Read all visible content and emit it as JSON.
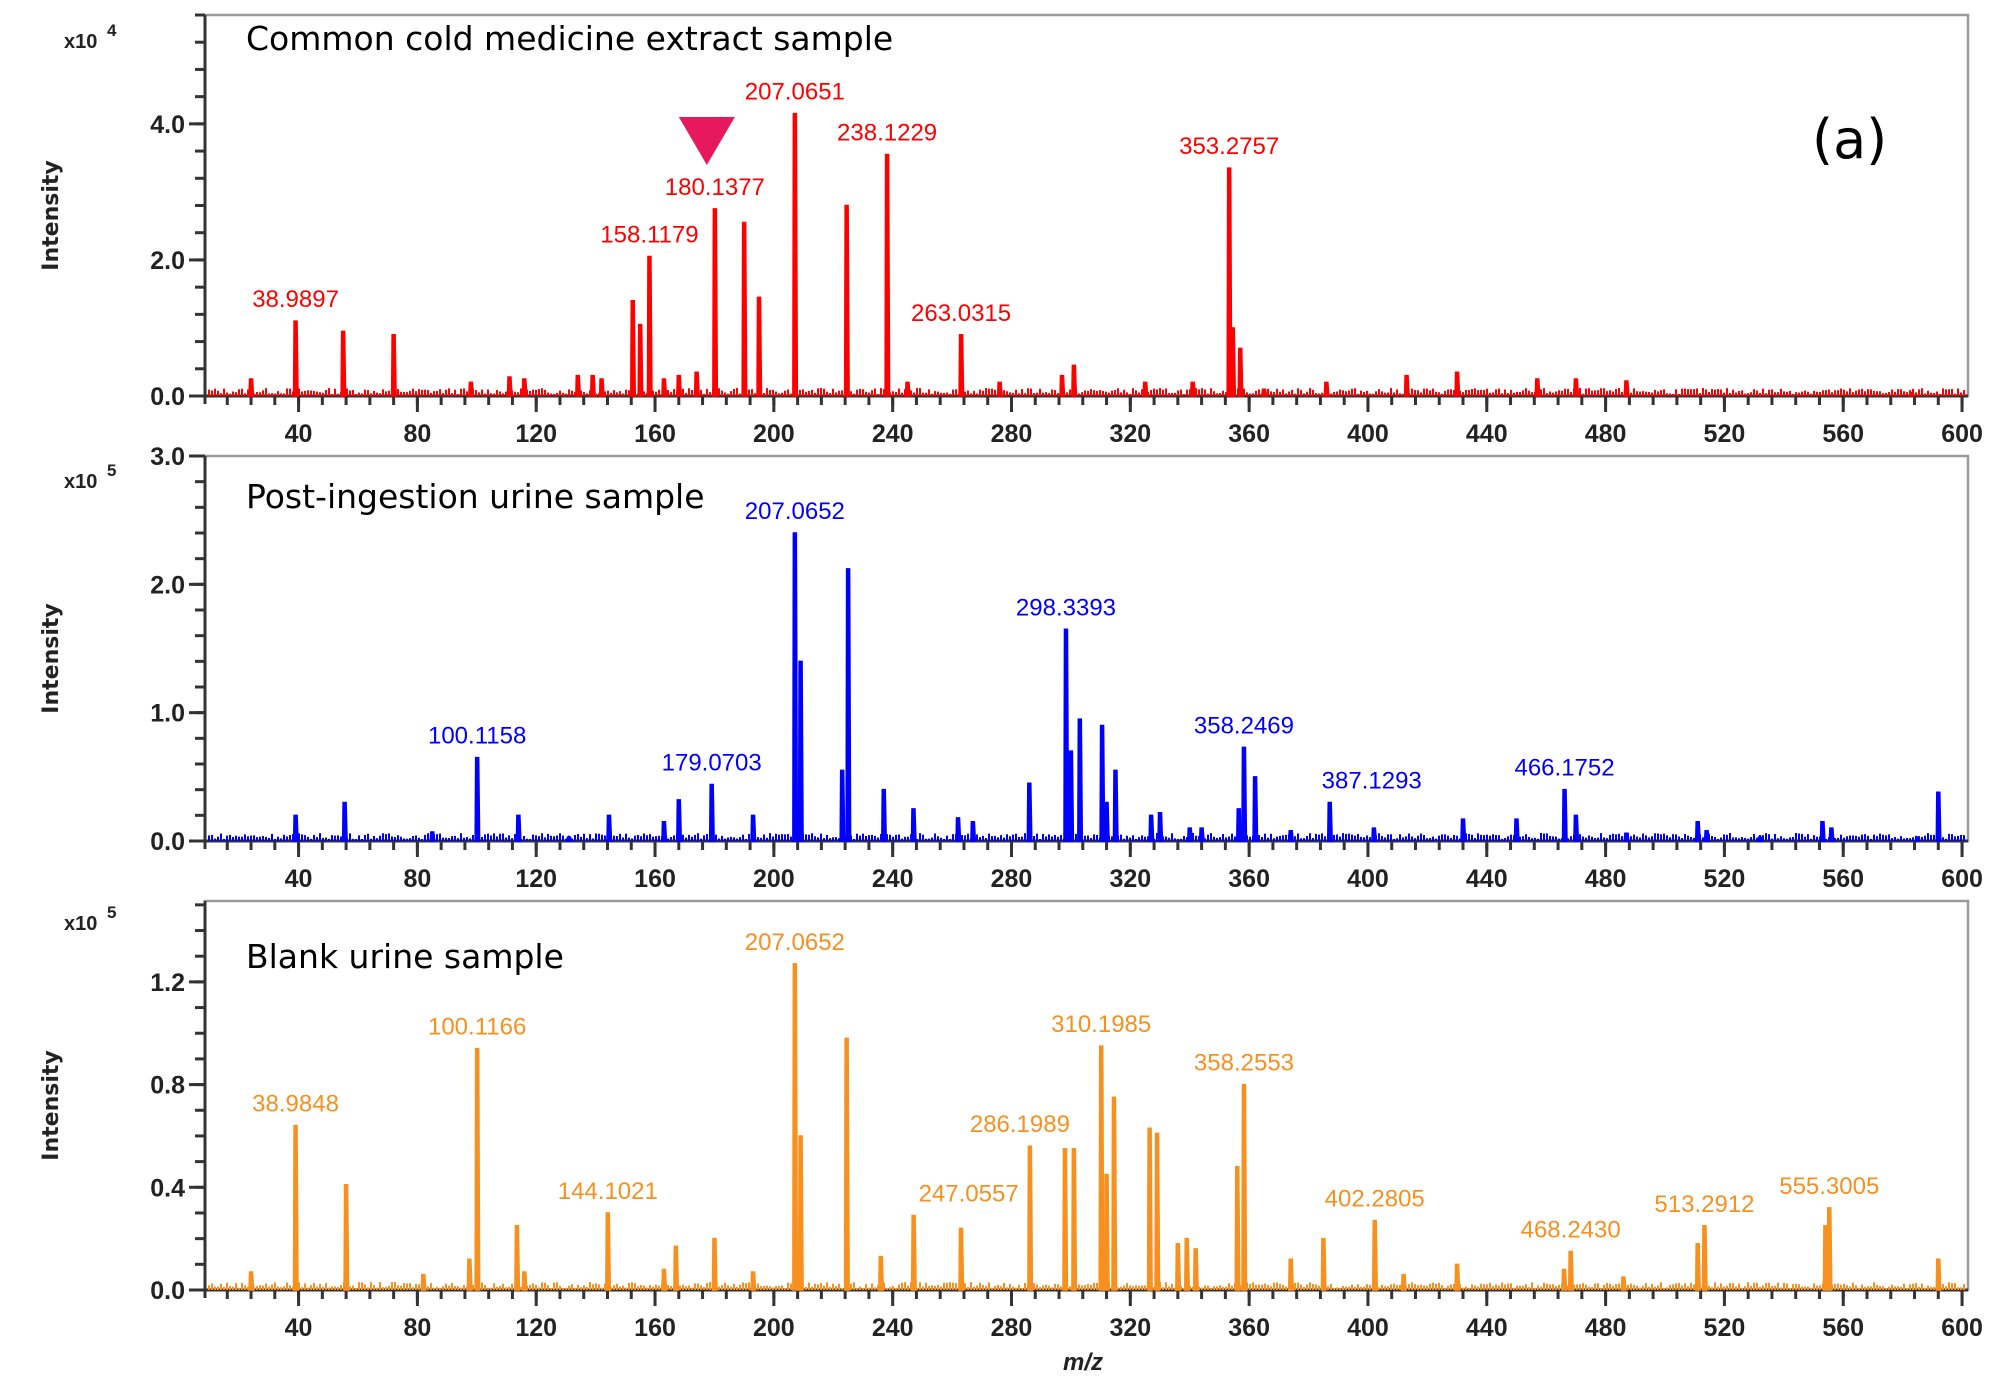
{
  "figure": {
    "panel_letter": "(a)",
    "xlabel": "m/z",
    "ylabel": "Intensity",
    "marker": {
      "semantic": "down-triangle-marker",
      "color": "#e8185e",
      "points_to_mz": 180.1377,
      "panel": 0
    }
  },
  "chart_data": [
    {
      "type": "line",
      "title": "Common cold medicine extract sample",
      "xlabel": "m/z",
      "ylabel": "Intensity",
      "y_multiplier": "x10^4",
      "y_exponent": "4",
      "xlim": [
        8.5,
        602
      ],
      "ylim": [
        0,
        5.6
      ],
      "x_ticks": [
        40,
        80,
        120,
        160,
        200,
        240,
        280,
        320,
        360,
        400,
        440,
        480,
        520,
        560,
        600
      ],
      "x_minor_step": 8,
      "y_ticks": [
        0.0,
        2.0,
        4.0
      ],
      "y_tick_labels": [
        "0.0",
        "2.0",
        "4.0"
      ],
      "y_minor_step": 0.4,
      "color": "#ff0000",
      "grid": false,
      "peaks": [
        {
          "mz": 24,
          "i": 0.25
        },
        {
          "mz": 38.99,
          "i": 1.1
        },
        {
          "mz": 55,
          "i": 0.95
        },
        {
          "mz": 72,
          "i": 0.9
        },
        {
          "mz": 98,
          "i": 0.2
        },
        {
          "mz": 111,
          "i": 0.28
        },
        {
          "mz": 116,
          "i": 0.25
        },
        {
          "mz": 134,
          "i": 0.3
        },
        {
          "mz": 139,
          "i": 0.3
        },
        {
          "mz": 142,
          "i": 0.25
        },
        {
          "mz": 152.5,
          "i": 1.4
        },
        {
          "mz": 155,
          "i": 1.05
        },
        {
          "mz": 158.12,
          "i": 2.05
        },
        {
          "mz": 163,
          "i": 0.25
        },
        {
          "mz": 168,
          "i": 0.3
        },
        {
          "mz": 174,
          "i": 0.35
        },
        {
          "mz": 180.14,
          "i": 2.75
        },
        {
          "mz": 190,
          "i": 2.55
        },
        {
          "mz": 195,
          "i": 1.45
        },
        {
          "mz": 207.07,
          "i": 4.15
        },
        {
          "mz": 224.5,
          "i": 2.8
        },
        {
          "mz": 238.12,
          "i": 3.55
        },
        {
          "mz": 245,
          "i": 0.2
        },
        {
          "mz": 263.03,
          "i": 0.9
        },
        {
          "mz": 276,
          "i": 0.2
        },
        {
          "mz": 297,
          "i": 0.3
        },
        {
          "mz": 301,
          "i": 0.45
        },
        {
          "mz": 325,
          "i": 0.2
        },
        {
          "mz": 341,
          "i": 0.2
        },
        {
          "mz": 353.28,
          "i": 3.35
        },
        {
          "mz": 354.5,
          "i": 1.0
        },
        {
          "mz": 357,
          "i": 0.7
        },
        {
          "mz": 365,
          "i": 0.1
        },
        {
          "mz": 386,
          "i": 0.2
        },
        {
          "mz": 413,
          "i": 0.3
        },
        {
          "mz": 430,
          "i": 0.35
        },
        {
          "mz": 457,
          "i": 0.25
        },
        {
          "mz": 470,
          "i": 0.25
        },
        {
          "mz": 487,
          "i": 0.22
        },
        {
          "mz": 583,
          "i": 0.05
        }
      ],
      "annotations": [
        {
          "text": "38.9897",
          "mz": 38.99,
          "i": 1.1
        },
        {
          "text": "158.1179",
          "mz": 158.12,
          "i": 2.05
        },
        {
          "text": "180.1377",
          "mz": 180.14,
          "i": 2.75
        },
        {
          "text": "207.0651",
          "mz": 207.07,
          "i": 4.15
        },
        {
          "text": "238.1229",
          "mz": 238.12,
          "i": 3.55
        },
        {
          "text": "263.0315",
          "mz": 263.03,
          "i": 0.9
        },
        {
          "text": "353.2757",
          "mz": 353.28,
          "i": 3.35
        }
      ]
    },
    {
      "type": "line",
      "title": "Post-ingestion urine sample",
      "xlabel": "m/z",
      "ylabel": "Intensity",
      "y_multiplier": "x10^5",
      "y_exponent": "5",
      "xlim": [
        8.5,
        602
      ],
      "ylim": [
        0,
        3.0
      ],
      "x_ticks": [
        40,
        80,
        120,
        160,
        200,
        240,
        280,
        320,
        360,
        400,
        440,
        480,
        520,
        560,
        600
      ],
      "x_minor_step": 8,
      "y_ticks": [
        0.0,
        1.0,
        2.0,
        3.0
      ],
      "y_tick_labels": [
        "0.0",
        "1.0",
        "2.0",
        "3.0"
      ],
      "y_minor_step": 0.2,
      "color": "#0000ff",
      "grid": false,
      "peaks": [
        {
          "mz": 39,
          "i": 0.2
        },
        {
          "mz": 55.5,
          "i": 0.3
        },
        {
          "mz": 85,
          "i": 0.07
        },
        {
          "mz": 100.12,
          "i": 0.65
        },
        {
          "mz": 114,
          "i": 0.2
        },
        {
          "mz": 131,
          "i": 0.03
        },
        {
          "mz": 144.5,
          "i": 0.2
        },
        {
          "mz": 163,
          "i": 0.15
        },
        {
          "mz": 168,
          "i": 0.32
        },
        {
          "mz": 179.07,
          "i": 0.44
        },
        {
          "mz": 193,
          "i": 0.2
        },
        {
          "mz": 207.07,
          "i": 2.4
        },
        {
          "mz": 209,
          "i": 1.4
        },
        {
          "mz": 223,
          "i": 0.55
        },
        {
          "mz": 225,
          "i": 2.12
        },
        {
          "mz": 237,
          "i": 0.4
        },
        {
          "mz": 247,
          "i": 0.25
        },
        {
          "mz": 262,
          "i": 0.18
        },
        {
          "mz": 267,
          "i": 0.15
        },
        {
          "mz": 286,
          "i": 0.45
        },
        {
          "mz": 298.34,
          "i": 1.65
        },
        {
          "mz": 300,
          "i": 0.7
        },
        {
          "mz": 303,
          "i": 0.95
        },
        {
          "mz": 310.5,
          "i": 0.9
        },
        {
          "mz": 312,
          "i": 0.3
        },
        {
          "mz": 315,
          "i": 0.55
        },
        {
          "mz": 327,
          "i": 0.2
        },
        {
          "mz": 330,
          "i": 0.22
        },
        {
          "mz": 340,
          "i": 0.1
        },
        {
          "mz": 344,
          "i": 0.1
        },
        {
          "mz": 356.5,
          "i": 0.25
        },
        {
          "mz": 358.25,
          "i": 0.73
        },
        {
          "mz": 362,
          "i": 0.5
        },
        {
          "mz": 374,
          "i": 0.08
        },
        {
          "mz": 387.13,
          "i": 0.3
        },
        {
          "mz": 402,
          "i": 0.1
        },
        {
          "mz": 432,
          "i": 0.17
        },
        {
          "mz": 450,
          "i": 0.17
        },
        {
          "mz": 466.18,
          "i": 0.4
        },
        {
          "mz": 470,
          "i": 0.2
        },
        {
          "mz": 487,
          "i": 0.06
        },
        {
          "mz": 511,
          "i": 0.15
        },
        {
          "mz": 514,
          "i": 0.08
        },
        {
          "mz": 532,
          "i": 0.03
        },
        {
          "mz": 553,
          "i": 0.15
        },
        {
          "mz": 556,
          "i": 0.1
        },
        {
          "mz": 585,
          "i": 0.03
        },
        {
          "mz": 592,
          "i": 0.38
        }
      ],
      "annotations": [
        {
          "text": "100.1158",
          "mz": 100.12,
          "i": 0.65
        },
        {
          "text": "179.0703",
          "mz": 179.07,
          "i": 0.44
        },
        {
          "text": "207.0652",
          "mz": 207.07,
          "i": 2.4
        },
        {
          "text": "298.3393",
          "mz": 298.34,
          "i": 1.65
        },
        {
          "text": "358.2469",
          "mz": 358.25,
          "i": 0.73
        },
        {
          "text": "387.1293",
          "mz": 387.13,
          "i": 0.3
        },
        {
          "text": "466.1752",
          "mz": 466.18,
          "i": 0.4
        }
      ]
    },
    {
      "type": "line",
      "title": "Blank urine sample",
      "xlabel": "m/z",
      "ylabel": "Intensity",
      "y_multiplier": "x10^5",
      "y_exponent": "5",
      "xlim": [
        8.5,
        602
      ],
      "ylim": [
        0,
        1.515
      ],
      "x_ticks": [
        40,
        80,
        120,
        160,
        200,
        240,
        280,
        320,
        360,
        400,
        440,
        480,
        520,
        560,
        600
      ],
      "x_minor_step": 8,
      "y_ticks": [
        0.0,
        0.4,
        0.8,
        1.2
      ],
      "y_tick_labels": [
        "0.0",
        "0.4",
        "0.8",
        "1.2"
      ],
      "y_minor_step": 0.1,
      "color": "#f7901e",
      "grid": false,
      "peaks": [
        {
          "mz": 24,
          "i": 0.07
        },
        {
          "mz": 38.98,
          "i": 0.64
        },
        {
          "mz": 56,
          "i": 0.41
        },
        {
          "mz": 82,
          "i": 0.06
        },
        {
          "mz": 97.5,
          "i": 0.12
        },
        {
          "mz": 100.12,
          "i": 0.94
        },
        {
          "mz": 113.5,
          "i": 0.25
        },
        {
          "mz": 116,
          "i": 0.07
        },
        {
          "mz": 144.1,
          "i": 0.3
        },
        {
          "mz": 163,
          "i": 0.08
        },
        {
          "mz": 167,
          "i": 0.17
        },
        {
          "mz": 180,
          "i": 0.2
        },
        {
          "mz": 193,
          "i": 0.07
        },
        {
          "mz": 207.07,
          "i": 1.27
        },
        {
          "mz": 209,
          "i": 0.6
        },
        {
          "mz": 224.5,
          "i": 0.98
        },
        {
          "mz": 236,
          "i": 0.13
        },
        {
          "mz": 247.06,
          "i": 0.29
        },
        {
          "mz": 263,
          "i": 0.24
        },
        {
          "mz": 286.2,
          "i": 0.56
        },
        {
          "mz": 298,
          "i": 0.55
        },
        {
          "mz": 301,
          "i": 0.55
        },
        {
          "mz": 310.2,
          "i": 0.95
        },
        {
          "mz": 312,
          "i": 0.45
        },
        {
          "mz": 314.5,
          "i": 0.75
        },
        {
          "mz": 326.5,
          "i": 0.63
        },
        {
          "mz": 329,
          "i": 0.61
        },
        {
          "mz": 336,
          "i": 0.18
        },
        {
          "mz": 339,
          "i": 0.2
        },
        {
          "mz": 342,
          "i": 0.16
        },
        {
          "mz": 356,
          "i": 0.48
        },
        {
          "mz": 358.26,
          "i": 0.8
        },
        {
          "mz": 374,
          "i": 0.12
        },
        {
          "mz": 385,
          "i": 0.2
        },
        {
          "mz": 402.28,
          "i": 0.27
        },
        {
          "mz": 412,
          "i": 0.06
        },
        {
          "mz": 430,
          "i": 0.1
        },
        {
          "mz": 466,
          "i": 0.08
        },
        {
          "mz": 468.24,
          "i": 0.15
        },
        {
          "mz": 486,
          "i": 0.05
        },
        {
          "mz": 511,
          "i": 0.18
        },
        {
          "mz": 513.29,
          "i": 0.25
        },
        {
          "mz": 554,
          "i": 0.25
        },
        {
          "mz": 555.3,
          "i": 0.32
        },
        {
          "mz": 592,
          "i": 0.12
        }
      ],
      "annotations": [
        {
          "text": "38.9848",
          "mz": 38.98,
          "i": 0.64
        },
        {
          "text": "100.1166",
          "mz": 100.12,
          "i": 0.94
        },
        {
          "text": "144.1021",
          "mz": 144.1,
          "i": 0.3
        },
        {
          "text": "207.0652",
          "mz": 207.07,
          "i": 1.27
        },
        {
          "text": "247.0557",
          "mz": 247.06,
          "i": 0.29
        },
        {
          "text": "286.1989",
          "mz": 286.2,
          "i": 0.56
        },
        {
          "text": "310.1985",
          "mz": 310.2,
          "i": 0.95
        },
        {
          "text": "358.2553",
          "mz": 358.26,
          "i": 0.8
        },
        {
          "text": "402.2805",
          "mz": 402.28,
          "i": 0.27
        },
        {
          "text": "468.2430",
          "mz": 468.24,
          "i": 0.15
        },
        {
          "text": "513.2912",
          "mz": 513.29,
          "i": 0.25
        },
        {
          "text": "555.3005",
          "mz": 555.3,
          "i": 0.32
        }
      ]
    }
  ]
}
